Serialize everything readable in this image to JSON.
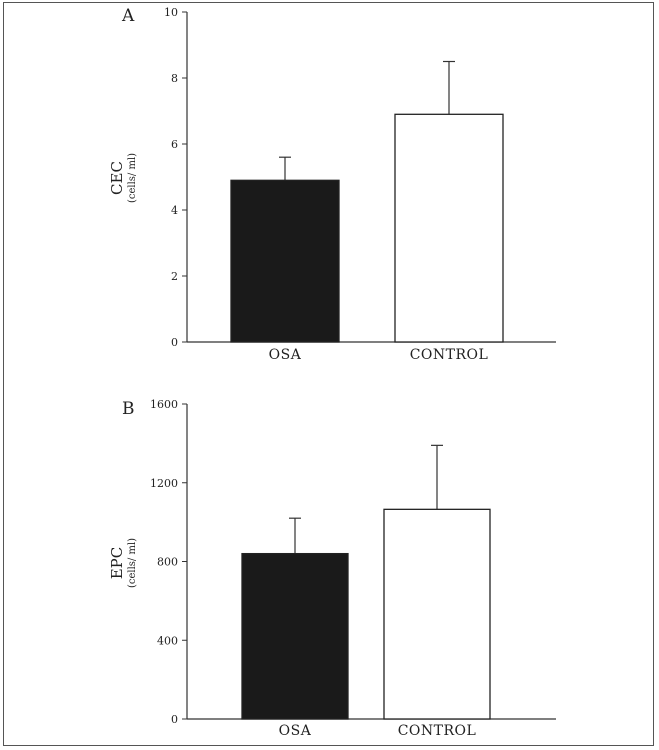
{
  "chart_data": [
    {
      "type": "bar",
      "panel_label": "A",
      "ylabel": "CEC",
      "ylabel_unit": "(cells/ ml)",
      "categories": [
        "OSA",
        "CONTROL"
      ],
      "values": [
        4.9,
        6.9
      ],
      "error_upper": [
        5.6,
        8.5
      ],
      "bar_fills": [
        "#1a1a1a",
        "#ffffff"
      ],
      "ylim": [
        0,
        10
      ],
      "yticks": [
        0,
        2,
        4,
        6,
        8,
        10
      ],
      "ytick_labels": [
        "0",
        "2",
        "4",
        "6",
        "8",
        "10"
      ],
      "grid": false,
      "legend": "none"
    },
    {
      "type": "bar",
      "panel_label": "B",
      "ylabel": "EPC",
      "ylabel_unit": "(cells/ ml)",
      "categories": [
        "OSA",
        "CONTROL"
      ],
      "values": [
        840,
        1065
      ],
      "error_upper": [
        1020,
        1390
      ],
      "bar_fills": [
        "#1a1a1a",
        "#ffffff"
      ],
      "ylim": [
        0,
        1600
      ],
      "yticks": [
        0,
        400,
        800,
        1200,
        1600
      ],
      "ytick_labels": [
        "0",
        "400",
        "800",
        "1200",
        "1600"
      ],
      "grid": false,
      "legend": "none"
    }
  ]
}
